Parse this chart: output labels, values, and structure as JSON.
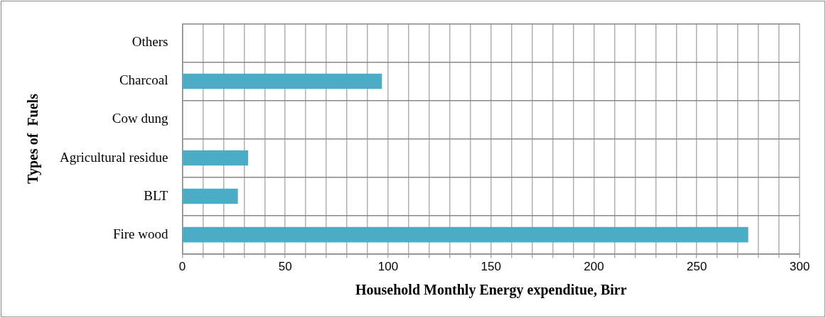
{
  "chart_data": {
    "type": "bar",
    "orientation": "horizontal",
    "xlabel": "Household Monthly Energy expenditue, Birr",
    "ylabel": "Types of  Fuels",
    "categories": [
      "Others",
      "Charcoal",
      "Cow dung",
      "Agricultural residue",
      "BLT",
      "Fire wood"
    ],
    "values": [
      0,
      97,
      0,
      32,
      27,
      275
    ],
    "color": "#4bacc6",
    "xlim": [
      0,
      300
    ],
    "xticks": [
      0,
      {
        "value": 10,
        "label": null
      },
      {
        "value": 20,
        "label": null
      },
      {
        "value": 30,
        "label": null
      },
      {
        "value": 40,
        "label": null
      },
      50,
      {
        "value": 60,
        "label": null
      },
      {
        "value": 70,
        "label": null
      },
      {
        "value": 80,
        "label": null
      },
      {
        "value": 90,
        "label": null
      },
      100,
      {
        "value": 110,
        "label": null
      },
      {
        "value": 120,
        "label": null
      },
      {
        "value": 130,
        "label": null
      },
      {
        "value": 140,
        "label": null
      },
      150,
      {
        "value": 160,
        "label": null
      },
      {
        "value": 170,
        "label": null
      },
      {
        "value": 180,
        "label": null
      },
      {
        "value": 190,
        "label": null
      },
      200,
      {
        "value": 210,
        "label": null
      },
      {
        "value": 220,
        "label": null
      },
      {
        "value": 230,
        "label": null
      },
      {
        "value": 240,
        "label": null
      },
      250,
      {
        "value": 260,
        "label": null
      },
      {
        "value": 270,
        "label": null
      },
      {
        "value": 280,
        "label": null
      },
      {
        "value": 290,
        "label": null
      },
      300
    ],
    "grid": true,
    "legend": false
  }
}
